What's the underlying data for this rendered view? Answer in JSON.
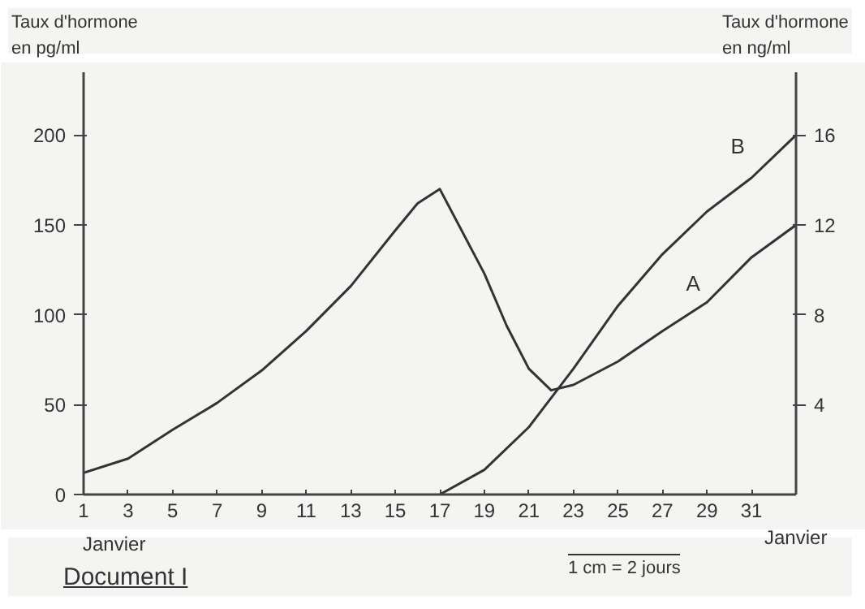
{
  "chart_data": {
    "type": "line",
    "xlabel": "Janvier",
    "ylabel": "Taux d'hormone en pg/ml",
    "y2label": "Taux d'hormone en ng/ml",
    "x": [
      1,
      3,
      5,
      7,
      9,
      11,
      13,
      15,
      16,
      17,
      19,
      20,
      21,
      22,
      23,
      25,
      27,
      29,
      31,
      33
    ],
    "series": [
      {
        "name": "A",
        "color": "#333333",
        "values": [
          12,
          20,
          36,
          51,
          69,
          91,
          116,
          147,
          162,
          170,
          123,
          94,
          70,
          58,
          61,
          74,
          91,
          107,
          132,
          150
        ]
      },
      {
        "name": "B",
        "color": "#333333",
        "axis": "y2",
        "x": [
          17,
          19,
          21,
          22,
          23,
          25,
          27,
          29,
          31,
          33
        ],
        "values": [
          0,
          1.1,
          3.0,
          4.3,
          5.6,
          8.4,
          10.7,
          12.6,
          14.1,
          16
        ]
      }
    ],
    "xlim": [
      1,
      33
    ],
    "xticks": [
      1,
      3,
      5,
      7,
      9,
      11,
      13,
      15,
      17,
      19,
      21,
      23,
      25,
      27,
      29,
      31
    ],
    "ylim": [
      0,
      235
    ],
    "yticks": [
      0,
      50,
      100,
      150,
      200
    ],
    "y2lim": [
      0,
      18.8
    ],
    "y2ticks": [
      4,
      8,
      12,
      16
    ],
    "grid": false,
    "legend": false,
    "marker": "none",
    "line_style": "solid",
    "annotations": [
      "Janvier",
      "1 cm = 2 jours",
      "Document I"
    ]
  }
}
